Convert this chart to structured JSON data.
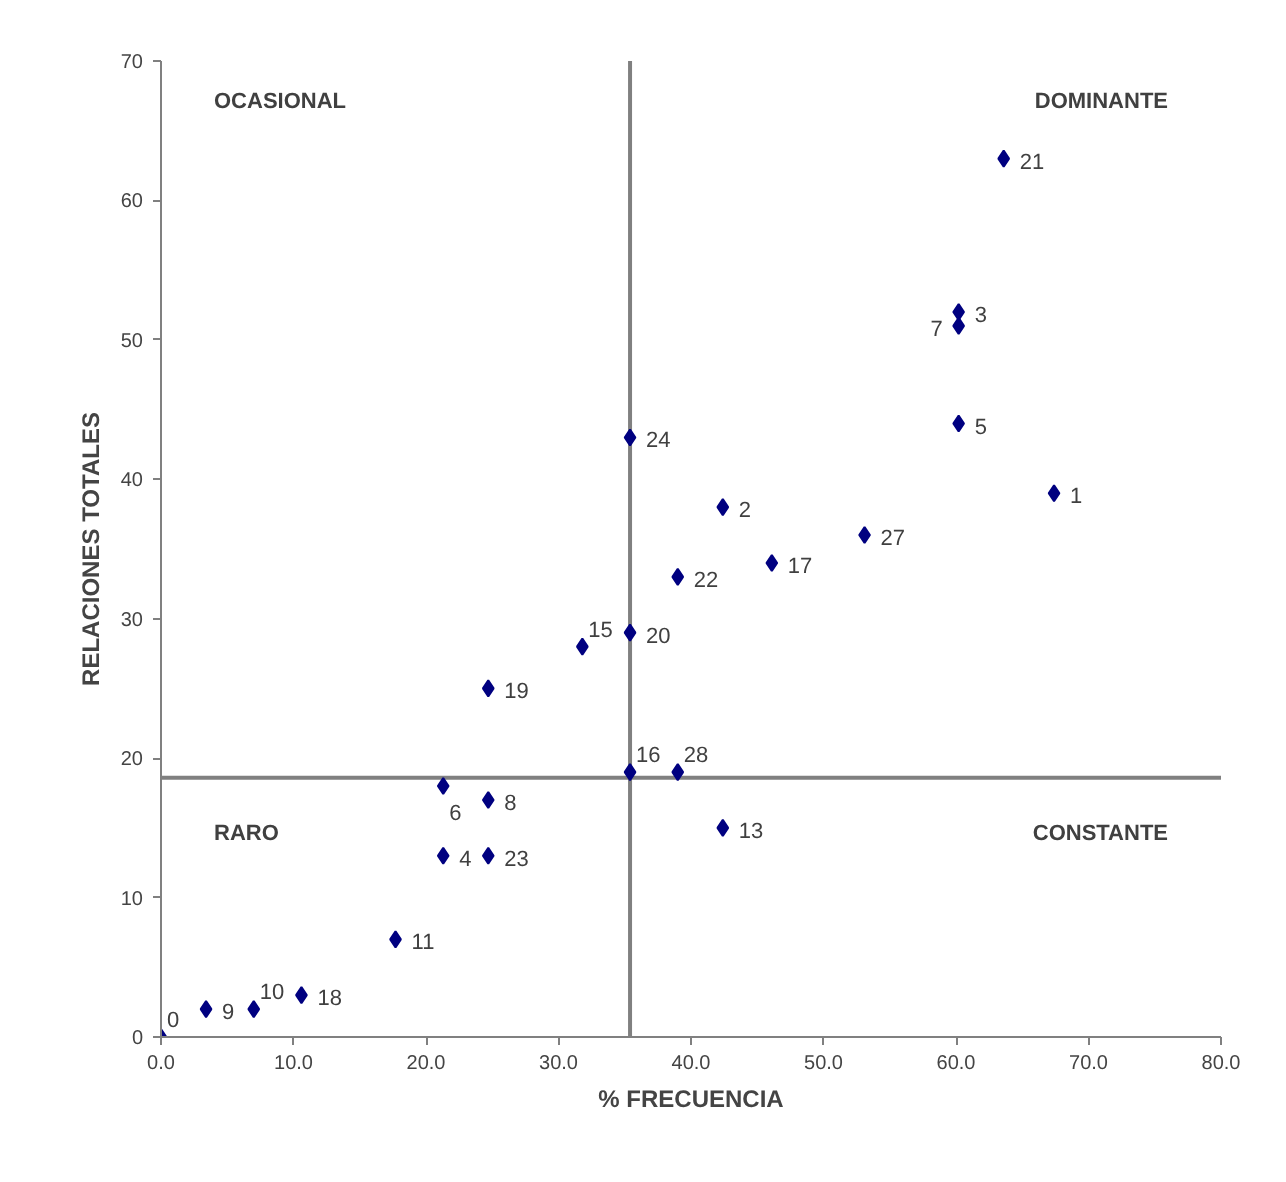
{
  "chart_data": {
    "type": "scatter",
    "xlabel": "% FRECUENCIA",
    "ylabel": "RELACIONES TOTALES",
    "x": [
      63.6,
      60.2,
      60.2,
      60.2,
      67.4,
      35.4,
      42.4,
      53.1,
      46.1,
      39,
      35.4,
      31.8,
      24.7,
      35.4,
      39,
      42.4,
      21.3,
      24.7,
      21.3,
      24.7,
      17.7,
      3.4,
      7,
      10.6,
      0
    ],
    "values": [
      63,
      52,
      51,
      44,
      39,
      43,
      38,
      36,
      34,
      33,
      29,
      28,
      25,
      19,
      19,
      15,
      18,
      17,
      13,
      13,
      7,
      2,
      2,
      3,
      0
    ],
    "color": "#000080",
    "marker": "diamond",
    "grid": false,
    "xlim": [
      0,
      80
    ],
    "ylim": [
      0,
      70
    ],
    "xticks": [
      {
        "value": 0,
        "label": "0.0"
      },
      {
        "value": 10,
        "label": "10.0"
      },
      {
        "value": 20,
        "label": "20.0"
      },
      {
        "value": 30,
        "label": "30.0"
      },
      {
        "value": 40,
        "label": "40.0"
      },
      {
        "value": 50,
        "label": "50.0"
      },
      {
        "value": 60,
        "label": "60.0"
      },
      {
        "value": 70,
        "label": "70.0"
      },
      {
        "value": 80,
        "label": "80.0"
      }
    ],
    "yticks": [
      0,
      10,
      20,
      30,
      40,
      50,
      60,
      70
    ],
    "ref_lines": [
      {
        "axis": "x",
        "value": 35.4,
        "label": null,
        "color": "#808080"
      },
      {
        "axis": "y",
        "value": 18.6,
        "label": null,
        "color": "#808080"
      }
    ],
    "annotations": [
      "OCASIONAL",
      "DOMINANTE",
      "RARO",
      "CONSTANTE",
      {
        "text": "21",
        "x": 63.6,
        "y": 63
      },
      {
        "text": "3",
        "x": 60.2,
        "y": 52
      },
      {
        "text": "7",
        "x": 60.2,
        "y": 51
      },
      {
        "text": "5",
        "x": 60.2,
        "y": 44
      },
      {
        "text": "1",
        "x": 67.4,
        "y": 39
      },
      {
        "text": "24",
        "x": 35.4,
        "y": 43
      },
      {
        "text": "2",
        "x": 42.4,
        "y": 38
      },
      {
        "text": "27",
        "x": 53.1,
        "y": 36
      },
      {
        "text": "17",
        "x": 46.1,
        "y": 34
      },
      {
        "text": "22",
        "x": 39,
        "y": 33
      },
      {
        "text": "20",
        "x": 35.4,
        "y": 29
      },
      {
        "text": "15",
        "x": 31.8,
        "y": 28
      },
      {
        "text": "19",
        "x": 24.7,
        "y": 25
      },
      {
        "text": "16",
        "x": 35.4,
        "y": 19
      },
      {
        "text": "28",
        "x": 39,
        "y": 19
      },
      {
        "text": "13",
        "x": 42.4,
        "y": 15
      },
      {
        "text": "6",
        "x": 21.3,
        "y": 18
      },
      {
        "text": "8",
        "x": 24.7,
        "y": 17
      },
      {
        "text": "4",
        "x": 21.3,
        "y": 13
      },
      {
        "text": "23",
        "x": 24.7,
        "y": 13
      },
      {
        "text": "11",
        "x": 17.7,
        "y": 7
      },
      {
        "text": "9",
        "x": 3.4,
        "y": 2
      },
      {
        "text": "10",
        "x": 7,
        "y": 2
      },
      {
        "text": "18",
        "x": 10.6,
        "y": 3
      },
      {
        "text": "0",
        "x": 0,
        "y": 0
      }
    ]
  }
}
